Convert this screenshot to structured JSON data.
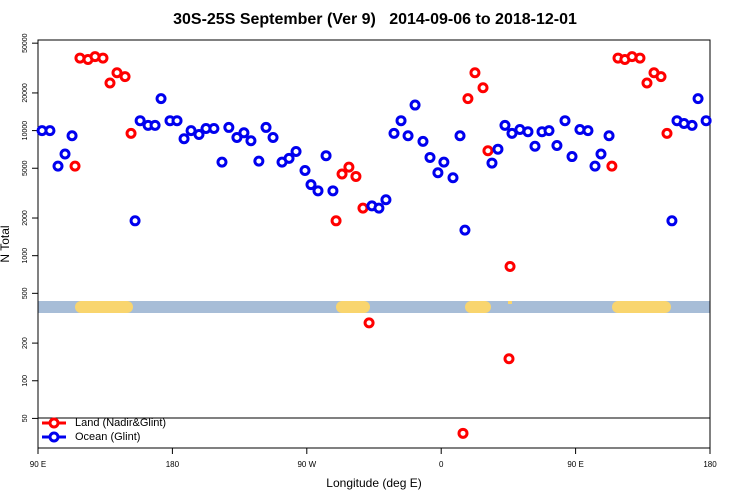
{
  "chart_data": {
    "type": "scatter",
    "title": "30S-25S September (Ver 9)   2014-09-06 to 2018-12-01",
    "x_label": "Longitude (deg E)",
    "y_label": "N Total",
    "log_y": true,
    "grid": false,
    "legend_position": "bottom-left",
    "xlim": [
      90,
      540
    ],
    "xticks": [
      {
        "value": 90,
        "label": "90 E"
      },
      180,
      {
        "value": 270,
        "label": "90 W"
      },
      {
        "value": 360,
        "label": "0"
      },
      {
        "value": 450,
        "label": "90 E"
      },
      {
        "value": 540,
        "label": "180"
      }
    ],
    "ylim": [
      29,
      53000
    ],
    "yticks": [
      50000,
      20000,
      10000,
      5000,
      2000,
      1000,
      500,
      200,
      100,
      50
    ],
    "series": [
      {
        "name": "Land (Nadir&Glint)",
        "color": "#ff0000",
        "x": [
          114.8,
          118.1,
          123.5,
          128.2,
          133.5,
          138.2,
          142.9,
          148.3,
          152.3,
          289.6,
          293.6,
          298.2,
          302.9,
          307.6,
          311.7,
          374.6,
          377.9,
          382.6,
          388.0,
          391.3,
          405.4,
          406.1,
          474.3,
          478.4,
          483.0,
          487.8,
          493.1,
          497.8,
          502.5,
          507.2,
          511.2
        ],
        "values": [
          5200,
          38000,
          37000,
          39000,
          38000,
          24000,
          29000,
          27000,
          9500,
          1900,
          4500,
          5100,
          4300,
          2400,
          290,
          38,
          18000,
          29000,
          22000,
          6900,
          150,
          820,
          5200,
          38000,
          37000,
          39000,
          38000,
          24000,
          29000,
          27000,
          9500
        ]
      },
      {
        "name": "Ocean (Glint)",
        "color": "#0000ee",
        "x": [
          92.7,
          98.0,
          103.4,
          108.1,
          112.8,
          155.0,
          158.4,
          163.7,
          168.4,
          172.4,
          178.4,
          183.1,
          187.8,
          192.5,
          197.8,
          202.5,
          207.8,
          213.2,
          217.8,
          223.2,
          227.9,
          232.6,
          237.9,
          242.7,
          247.4,
          253.4,
          258.1,
          262.8,
          268.8,
          272.8,
          277.5,
          282.9,
          287.5,
          313.6,
          318.3,
          323.0,
          328.4,
          333.1,
          337.8,
          342.5,
          347.8,
          352.5,
          357.8,
          361.8,
          367.9,
          372.6,
          375.9,
          394.0,
          398.0,
          402.7,
          407.4,
          412.7,
          418.1,
          422.8,
          427.5,
          432.2,
          437.5,
          442.9,
          447.6,
          452.9,
          458.3,
          463.0,
          467.0,
          472.4,
          514.5,
          517.9,
          522.6,
          528.0,
          532.0,
          537.4
        ],
        "values": [
          10000,
          10000,
          5200,
          6500,
          9100,
          1900,
          12000,
          11000,
          11000,
          18000,
          12000,
          12000,
          8600,
          10000,
          9300,
          10400,
          10400,
          5600,
          10600,
          8800,
          9600,
          8300,
          5700,
          10600,
          8800,
          5600,
          6000,
          6800,
          4800,
          3700,
          3300,
          6300,
          3300,
          2500,
          2400,
          2800,
          9500,
          12000,
          9100,
          16000,
          8200,
          6100,
          4600,
          5600,
          4200,
          9100,
          1600,
          5500,
          7100,
          11000,
          9500,
          10200,
          9800,
          7500,
          9800,
          10000,
          7600,
          12000,
          6200,
          10200,
          10000,
          5200,
          6500,
          9100,
          1900,
          12000,
          11400,
          11000,
          18000,
          12000
        ]
      }
    ]
  }
}
